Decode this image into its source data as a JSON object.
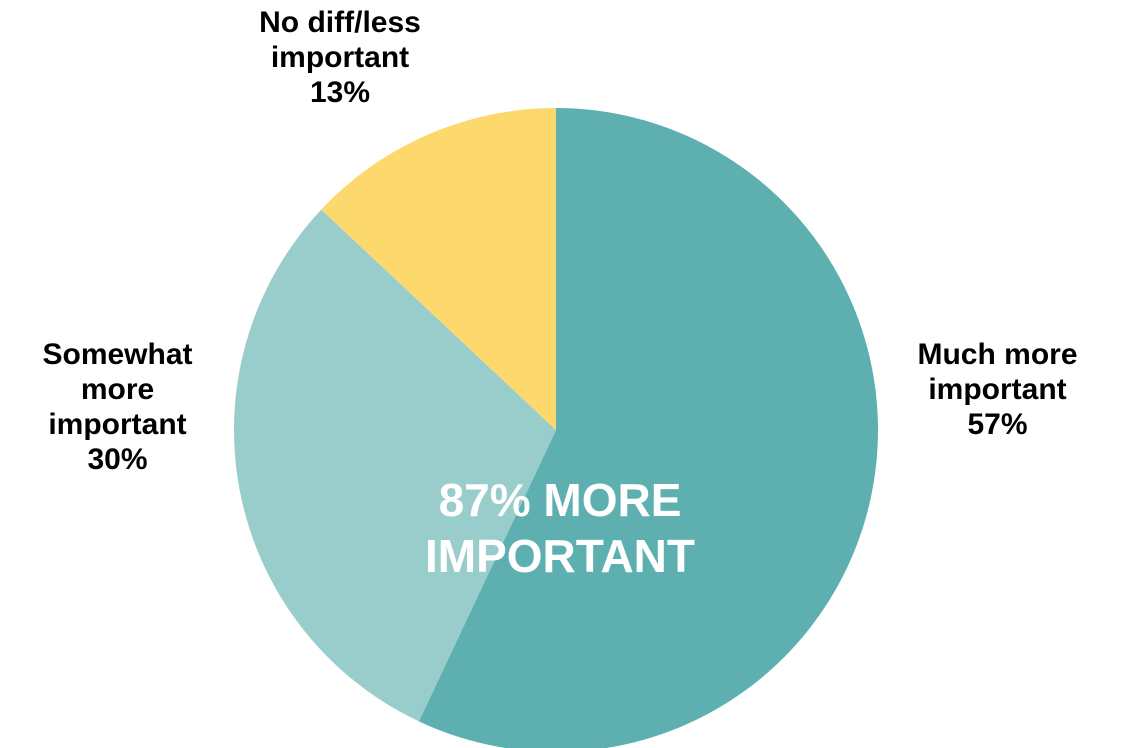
{
  "chart_data": {
    "type": "pie",
    "title": "",
    "slices": [
      {
        "label": "Much more important",
        "value": 57,
        "color": "#5EB0B0"
      },
      {
        "label": "Somewhat more important",
        "value": 30,
        "color": "#99CDCC"
      },
      {
        "label": "No diff/less important",
        "value": 13,
        "color": "#FDD86C"
      }
    ],
    "start": "12 o'clock",
    "direction": "clockwise",
    "legend": "none",
    "data_labels": {
      "much": [
        "Much more",
        "important",
        "57%"
      ],
      "somewhat": [
        "Somewhat",
        "more",
        "important",
        "30%"
      ],
      "nodiff": [
        "No diff/less",
        "important",
        "13%"
      ]
    },
    "callout": [
      "87% MORE",
      "IMPORTANT"
    ]
  }
}
